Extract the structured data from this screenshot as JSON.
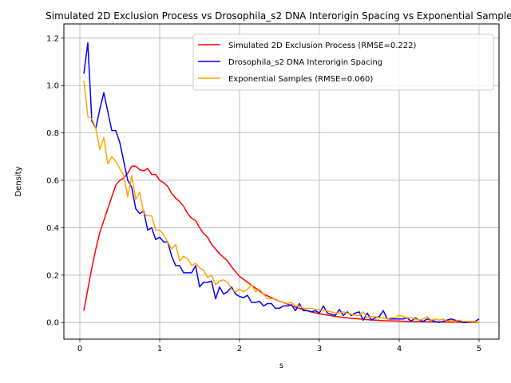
{
  "chart_data": {
    "type": "line",
    "title": "Simulated 2D Exclusion Process vs Drosophila_s2 DNA Interorigin Spacing vs Exponential Samples",
    "xlabel": "s",
    "ylabel": "Density",
    "xlim": [
      -0.2,
      5.25
    ],
    "ylim": [
      -0.07,
      1.26
    ],
    "xticks": [
      0,
      1,
      2,
      3,
      4,
      5
    ],
    "yticks": [
      0.0,
      0.2,
      0.4,
      0.6,
      0.8,
      1.0,
      1.2
    ],
    "grid": true,
    "legend_position": "upper right",
    "series": [
      {
        "name": "Simulated 2D Exclusion Process (RMSE=0.222)",
        "color": "#ff0000",
        "x": [
          0.05,
          0.1,
          0.15,
          0.2,
          0.25,
          0.3,
          0.35,
          0.4,
          0.45,
          0.5,
          0.55,
          0.6,
          0.65,
          0.7,
          0.75,
          0.8,
          0.85,
          0.9,
          0.95,
          1.0,
          1.05,
          1.1,
          1.15,
          1.2,
          1.25,
          1.3,
          1.35,
          1.4,
          1.45,
          1.5,
          1.55,
          1.6,
          1.65,
          1.7,
          1.75,
          1.8,
          1.85,
          1.9,
          1.95,
          2.0,
          2.1,
          2.2,
          2.3,
          2.4,
          2.5,
          2.6,
          2.7,
          2.8,
          2.9,
          3.0,
          3.2,
          3.4,
          3.6,
          3.8,
          4.0,
          4.2,
          4.4,
          4.6,
          4.8,
          5.0
        ],
        "values": [
          0.05,
          0.14,
          0.23,
          0.31,
          0.38,
          0.43,
          0.48,
          0.53,
          0.58,
          0.6,
          0.61,
          0.63,
          0.66,
          0.66,
          0.645,
          0.64,
          0.65,
          0.625,
          0.625,
          0.6,
          0.59,
          0.575,
          0.545,
          0.525,
          0.51,
          0.49,
          0.46,
          0.44,
          0.43,
          0.4,
          0.375,
          0.36,
          0.33,
          0.31,
          0.29,
          0.275,
          0.26,
          0.235,
          0.215,
          0.195,
          0.17,
          0.145,
          0.12,
          0.105,
          0.09,
          0.078,
          0.065,
          0.055,
          0.045,
          0.037,
          0.026,
          0.018,
          0.012,
          0.008,
          0.006,
          0.004,
          0.003,
          0.002,
          0.001,
          0.001
        ]
      },
      {
        "name": "Drosophila_s2 DNA Interorigin Spacing",
        "color": "#0000ff",
        "x": [
          0.05,
          0.1,
          0.15,
          0.2,
          0.25,
          0.3,
          0.35,
          0.4,
          0.45,
          0.5,
          0.55,
          0.6,
          0.65,
          0.7,
          0.75,
          0.8,
          0.85,
          0.9,
          0.95,
          1.0,
          1.05,
          1.1,
          1.15,
          1.2,
          1.25,
          1.3,
          1.35,
          1.4,
          1.45,
          1.5,
          1.55,
          1.6,
          1.65,
          1.7,
          1.75,
          1.8,
          1.85,
          1.9,
          1.95,
          2.0,
          2.05,
          2.1,
          2.15,
          2.2,
          2.25,
          2.3,
          2.35,
          2.4,
          2.45,
          2.5,
          2.55,
          2.6,
          2.65,
          2.7,
          2.75,
          2.8,
          2.85,
          2.9,
          2.95,
          3.0,
          3.05,
          3.1,
          3.15,
          3.2,
          3.25,
          3.3,
          3.35,
          3.4,
          3.45,
          3.5,
          3.55,
          3.6,
          3.65,
          3.7,
          3.75,
          3.8,
          3.85,
          3.9,
          3.95,
          4.0,
          4.05,
          4.1,
          4.15,
          4.2,
          4.25,
          4.3,
          4.35,
          4.4,
          4.45,
          4.5,
          4.55,
          4.6,
          4.65,
          4.7,
          4.75,
          4.8,
          4.85,
          4.9,
          4.95,
          5.0
        ],
        "values": [
          1.05,
          1.18,
          0.85,
          0.82,
          0.9,
          0.97,
          0.89,
          0.81,
          0.81,
          0.76,
          0.68,
          0.6,
          0.57,
          0.48,
          0.46,
          0.47,
          0.39,
          0.4,
          0.35,
          0.36,
          0.34,
          0.34,
          0.28,
          0.24,
          0.24,
          0.21,
          0.21,
          0.21,
          0.24,
          0.15,
          0.17,
          0.17,
          0.175,
          0.1,
          0.15,
          0.12,
          0.13,
          0.15,
          0.12,
          0.11,
          0.105,
          0.115,
          0.085,
          0.085,
          0.09,
          0.07,
          0.08,
          0.08,
          0.06,
          0.06,
          0.07,
          0.07,
          0.075,
          0.05,
          0.08,
          0.05,
          0.05,
          0.045,
          0.05,
          0.04,
          0.07,
          0.04,
          0.035,
          0.03,
          0.055,
          0.03,
          0.045,
          0.03,
          0.04,
          0.045,
          0.01,
          0.04,
          0.01,
          0.02,
          0.025,
          0.05,
          0.015,
          0.015,
          0.015,
          0.015,
          0.015,
          0.02,
          0.005,
          0.02,
          0.01,
          0.005,
          0.015,
          0.01,
          0.005,
          0.0,
          0.005,
          0.01,
          0.015,
          0.01,
          0.005,
          0.0,
          0.0,
          0.005,
          0.005,
          0.015
        ]
      },
      {
        "name": "Exponential Samples (RMSE=0.060)",
        "color": "#ffa500",
        "x": [
          0.05,
          0.1,
          0.15,
          0.2,
          0.25,
          0.3,
          0.35,
          0.4,
          0.45,
          0.5,
          0.55,
          0.6,
          0.65,
          0.7,
          0.75,
          0.8,
          0.85,
          0.9,
          0.95,
          1.0,
          1.05,
          1.1,
          1.15,
          1.2,
          1.25,
          1.3,
          1.35,
          1.4,
          1.45,
          1.5,
          1.55,
          1.6,
          1.65,
          1.7,
          1.75,
          1.8,
          1.85,
          1.9,
          1.95,
          2.0,
          2.05,
          2.1,
          2.15,
          2.2,
          2.25,
          2.3,
          2.35,
          2.4,
          2.45,
          2.5,
          2.55,
          2.6,
          2.65,
          2.7,
          2.75,
          2.8,
          2.85,
          2.9,
          2.95,
          3.0,
          3.05,
          3.1,
          3.15,
          3.2,
          3.25,
          3.3,
          3.35,
          3.4,
          3.45,
          3.5,
          3.55,
          3.6,
          3.65,
          3.7,
          3.75,
          3.8,
          3.85,
          3.9,
          3.95,
          4.0,
          4.05,
          4.1,
          4.15,
          4.2,
          4.25,
          4.3,
          4.35,
          4.4,
          4.45,
          4.5,
          4.55,
          4.6,
          4.65,
          4.7,
          4.75,
          4.8,
          4.85,
          4.9,
          4.95,
          5.0
        ],
        "values": [
          1.02,
          0.87,
          0.86,
          0.82,
          0.73,
          0.78,
          0.67,
          0.7,
          0.68,
          0.65,
          0.62,
          0.53,
          0.62,
          0.52,
          0.55,
          0.46,
          0.45,
          0.45,
          0.39,
          0.39,
          0.37,
          0.34,
          0.31,
          0.33,
          0.26,
          0.28,
          0.27,
          0.24,
          0.25,
          0.23,
          0.22,
          0.19,
          0.2,
          0.16,
          0.175,
          0.18,
          0.17,
          0.14,
          0.13,
          0.14,
          0.13,
          0.14,
          0.16,
          0.13,
          0.14,
          0.12,
          0.1,
          0.1,
          0.1,
          0.09,
          0.085,
          0.08,
          0.085,
          0.07,
          0.07,
          0.06,
          0.06,
          0.06,
          0.055,
          0.055,
          0.05,
          0.05,
          0.045,
          0.04,
          0.04,
          0.045,
          0.04,
          0.035,
          0.03,
          0.03,
          0.045,
          0.02,
          0.025,
          0.025,
          0.02,
          0.02,
          0.015,
          0.02,
          0.02,
          0.03,
          0.025,
          0.02,
          0.02,
          0.015,
          0.01,
          0.015,
          0.025,
          0.01,
          0.015,
          0.01,
          0.015,
          0.005,
          0.01,
          0.005,
          0.01,
          0.005,
          0.005,
          0.005,
          0.005,
          0.0
        ]
      }
    ]
  }
}
